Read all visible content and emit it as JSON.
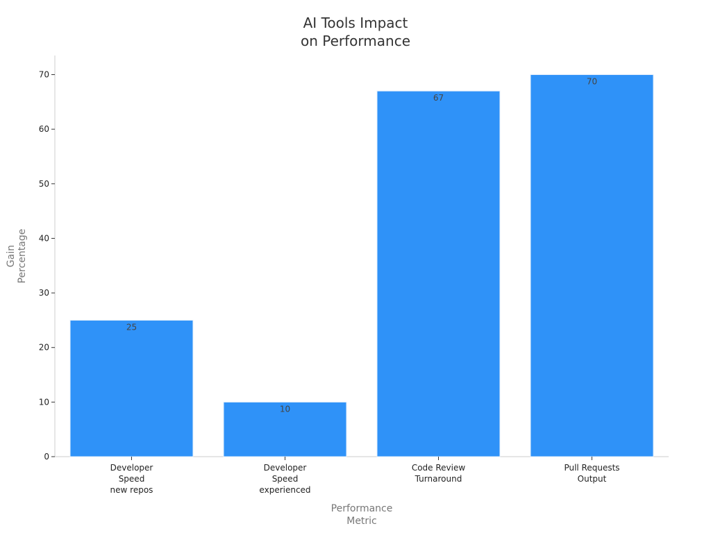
{
  "chart_data": {
    "type": "bar",
    "title": [
      "AI Tools Impact",
      "on Performance"
    ],
    "xlabel": [
      "Performance",
      "Metric"
    ],
    "ylabel": [
      "Gain",
      "Percentage"
    ],
    "categories": [
      [
        "Developer",
        "Speed",
        "new repos"
      ],
      [
        "Developer",
        "Speed",
        "experienced"
      ],
      [
        "Code Review",
        "Turnaround"
      ],
      [
        "Pull Requests",
        "Output"
      ]
    ],
    "values": [
      25,
      10,
      67,
      70
    ],
    "data_labels": [
      "25",
      "10",
      "67",
      "70"
    ],
    "yticks": [
      0,
      10,
      20,
      30,
      40,
      50,
      60,
      70
    ],
    "ylim": [
      0,
      73.5
    ],
    "grid": false,
    "legend": "none",
    "bar_color": "#2f92f8",
    "axis_color": "#cccccc"
  }
}
